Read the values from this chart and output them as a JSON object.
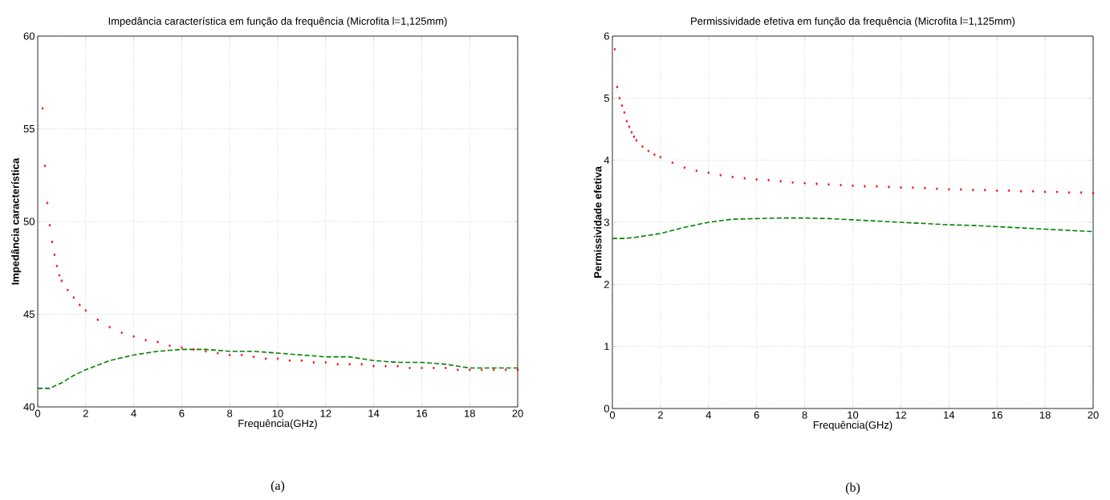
{
  "chart_data": [
    {
      "type": "line",
      "title": "Impedância característica em função da frequência (Microfita l=1,125mm)",
      "xlabel": "Frequência(GHz)",
      "ylabel": "Impedância característica",
      "xlim": [
        0,
        20
      ],
      "ylim": [
        40,
        60
      ],
      "xticks": [
        0,
        2,
        4,
        6,
        8,
        10,
        12,
        14,
        16,
        18,
        20
      ],
      "yticks": [
        40,
        45,
        50,
        55,
        60
      ],
      "grid": true,
      "annotations": [
        "(a)"
      ],
      "series": [
        {
          "color": "#008000",
          "line_style": "dashed",
          "marker": "none",
          "x": [
            0,
            0.5,
            1,
            1.5,
            2,
            3,
            4,
            5,
            6,
            7,
            8,
            9,
            10,
            11,
            12,
            13,
            14,
            15,
            16,
            17,
            18,
            19,
            20
          ],
          "values": [
            41.0,
            41.0,
            41.3,
            41.7,
            42.0,
            42.5,
            42.8,
            43.0,
            43.1,
            43.1,
            43.0,
            43.0,
            42.9,
            42.8,
            42.7,
            42.7,
            42.5,
            42.4,
            42.4,
            42.3,
            42.1,
            42.1,
            42.1
          ]
        },
        {
          "type": "scatter",
          "color": "#ff0000",
          "marker": "diamond",
          "x": [
            0.2,
            0.3,
            0.4,
            0.5,
            0.6,
            0.7,
            0.8,
            0.9,
            1,
            1.25,
            1.5,
            1.75,
            2,
            2.5,
            3,
            3.5,
            4,
            4.5,
            5,
            5.5,
            6,
            6.5,
            7,
            7.5,
            8,
            8.5,
            9,
            9.5,
            10,
            10.5,
            11,
            11.5,
            12,
            12.5,
            13,
            13.5,
            14,
            14.5,
            15,
            15.5,
            16,
            16.5,
            17,
            17.5,
            18,
            18.5,
            19,
            19.5,
            20
          ],
          "values": [
            56.1,
            53.0,
            51.0,
            49.8,
            48.9,
            48.2,
            47.6,
            47.1,
            46.8,
            46.3,
            45.9,
            45.5,
            45.2,
            44.7,
            44.3,
            44.0,
            43.8,
            43.6,
            43.5,
            43.3,
            43.2,
            43.1,
            43.0,
            42.9,
            42.8,
            42.8,
            42.7,
            42.6,
            42.6,
            42.5,
            42.5,
            42.4,
            42.4,
            42.3,
            42.3,
            42.3,
            42.2,
            42.2,
            42.2,
            42.1,
            42.1,
            42.1,
            42.1,
            42.0,
            42.0,
            42.0,
            42.0,
            42.0,
            42.0
          ]
        }
      ]
    },
    {
      "type": "line",
      "title": "Permissividade efetiva em função da frequência (Microfita l=1,125mm)",
      "xlabel": "Frequência(GHz)",
      "ylabel": "Permissividade efetiva",
      "xlim": [
        0,
        20
      ],
      "ylim": [
        0,
        6
      ],
      "xticks": [
        0,
        2,
        4,
        6,
        8,
        10,
        12,
        14,
        16,
        18,
        20
      ],
      "yticks": [
        0,
        1,
        2,
        3,
        4,
        5,
        6
      ],
      "grid": true,
      "annotations": [
        "(b)"
      ],
      "series": [
        {
          "color": "#008000",
          "line_style": "dashed",
          "marker": "none",
          "x": [
            0,
            0.5,
            1,
            1.5,
            2,
            3,
            4,
            5,
            6,
            7,
            8,
            9,
            10,
            11,
            12,
            13,
            14,
            15,
            16,
            17,
            18,
            19,
            20
          ],
          "values": [
            2.74,
            2.74,
            2.76,
            2.79,
            2.82,
            2.92,
            3.0,
            3.05,
            3.06,
            3.07,
            3.07,
            3.06,
            3.04,
            3.02,
            3.0,
            2.98,
            2.96,
            2.95,
            2.93,
            2.91,
            2.89,
            2.87,
            2.85
          ]
        },
        {
          "type": "scatter",
          "color": "#ff0000",
          "marker": "diamond",
          "x": [
            0.1,
            0.2,
            0.3,
            0.4,
            0.5,
            0.6,
            0.7,
            0.8,
            0.9,
            1,
            1.25,
            1.5,
            1.75,
            2,
            2.5,
            3,
            3.5,
            4,
            4.5,
            5,
            5.5,
            6,
            6.5,
            7,
            7.5,
            8,
            8.5,
            9,
            9.5,
            10,
            10.5,
            11,
            11.5,
            12,
            12.5,
            13,
            13.5,
            14,
            14.5,
            15,
            15.5,
            16,
            16.5,
            17,
            17.5,
            18,
            18.5,
            19,
            19.5,
            20
          ],
          "values": [
            5.79,
            5.18,
            5.0,
            4.88,
            4.77,
            4.63,
            4.54,
            4.45,
            4.38,
            4.32,
            4.22,
            4.15,
            4.09,
            4.05,
            3.96,
            3.88,
            3.83,
            3.8,
            3.76,
            3.73,
            3.71,
            3.69,
            3.68,
            3.66,
            3.64,
            3.63,
            3.62,
            3.61,
            3.6,
            3.59,
            3.58,
            3.58,
            3.57,
            3.56,
            3.56,
            3.55,
            3.54,
            3.53,
            3.53,
            3.52,
            3.52,
            3.51,
            3.51,
            3.5,
            3.5,
            3.49,
            3.49,
            3.48,
            3.48,
            3.47
          ]
        }
      ]
    }
  ]
}
